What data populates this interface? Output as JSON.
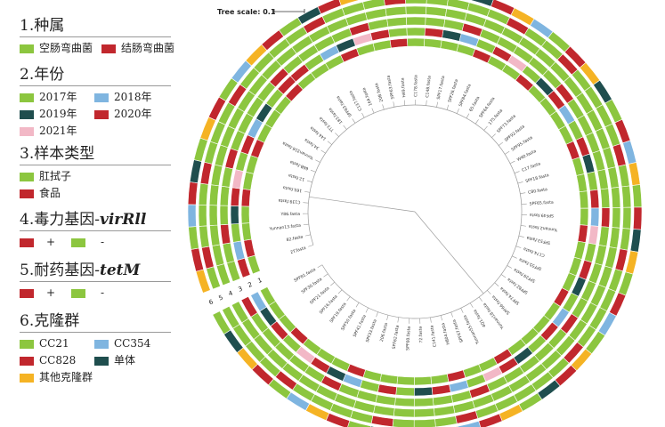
{
  "colors": {
    "green": "#8cc63f",
    "red": "#c1272d",
    "blue": "#7fb5e0",
    "dark": "#1f4e4e",
    "pink": "#f2b8c6",
    "orange": "#f5b324"
  },
  "legend": {
    "species": {
      "title": "1.种属",
      "items": [
        {
          "label": "空肠弯曲菌",
          "color": "#8cc63f"
        },
        {
          "label": "结肠弯曲菌",
          "color": "#c1272d"
        }
      ]
    },
    "year": {
      "title": "2.年份",
      "items": [
        {
          "label": "2017年",
          "color": "#8cc63f"
        },
        {
          "label": "2018年",
          "color": "#7fb5e0"
        },
        {
          "label": "2019年",
          "color": "#1f4e4e"
        },
        {
          "label": "2020年",
          "color": "#c1272d"
        },
        {
          "label": "2021年",
          "color": "#f2b8c6"
        }
      ]
    },
    "sample": {
      "title": "3.样本类型",
      "items": [
        {
          "label": "肛拭子",
          "color": "#8cc63f"
        },
        {
          "label": "食品",
          "color": "#c1272d"
        }
      ]
    },
    "virulence": {
      "title_prefix": "4.毒力基因-",
      "gene": "virRll",
      "plus": "+",
      "minus": "-"
    },
    "resistance": {
      "title_prefix": "5.耐药基因-",
      "gene": "tetM",
      "plus": "+",
      "minus": "-"
    },
    "clone": {
      "title": "6.克隆群",
      "items": [
        {
          "label": "CC21",
          "color": "#8cc63f"
        },
        {
          "label": "CC354",
          "color": "#7fb5e0"
        },
        {
          "label": "CC828",
          "color": "#c1272d"
        },
        {
          "label": "单体",
          "color": "#1f4e4e"
        },
        {
          "label": "其他克隆群",
          "color": "#f5b324"
        }
      ]
    }
  },
  "tree": {
    "scale_label": "Tree scale: 0.1",
    "ring_labels": [
      "6",
      "5",
      "4",
      "3",
      "2",
      "1"
    ],
    "leaf_labels": [
      "2T.fasta",
      "82.fasta",
      "Yunnan13.fasta",
      "Y86.fasta",
      "C139.fasta",
      "16S.fasta",
      "12.fasta",
      "66B.fasta",
      "Yunnan316.fasta",
      "34.fasta",
      "144.fasta",
      "TT3.fasta",
      "183.fasta",
      "SPF83.fasta",
      "C137.fasta",
      "164.fasta",
      "20B.fasta",
      "SPF63.fasta",
      "H49.fasta",
      "C178.fasta",
      "C148.fasta",
      "SPF17.fasta",
      "SPF26.fasta",
      "SPF84.fasta",
      "65.fasta",
      "SPF64.fasta",
      "175.fasta",
      "SPF73.fasta",
      "SPF92.fasta",
      "SPF95.fasta",
      "W40.fasta",
      "C17.fasta",
      "SPF18.fasta",
      "C80.fasta",
      "SPF65.fasta",
      "SPF49.fasta",
      "Yunnan2.fasta",
      "SPF53.fasta",
      "C174.fasta",
      "SPF55.fasta",
      "SPF29.fasta",
      "SPF82.fasta",
      "SPF74.fasta",
      "SPF66.fasta",
      "Yunnan18.fasta",
      "4Q1.fasta",
      "Yunnan55.fasta",
      "SPF67.fasta",
      "H804.fasta",
      "C141.fasta",
      "72.fasta",
      "SPF60.fasta",
      "SPF62.fasta",
      "206.fasta",
      "SPF33.fasta",
      "SPF41.fasta",
      "SPF50.fasta",
      "SPF19.fasta",
      "SPF16.fasta",
      "SPF21.fasta",
      "SPF30.fasta",
      "SPF81.fasta"
    ],
    "rings": [
      [
        "#8cc63f",
        "#c1272d",
        "#8cc63f",
        "#8cc63f",
        "#c1272d",
        "#8cc63f",
        "#8cc63f",
        "#c1272d",
        "#8cc63f",
        "#8cc63f",
        "#8cc63f",
        "#c1272d",
        "#8cc63f",
        "#8cc63f",
        "#8cc63f",
        "#c1272d",
        "#8cc63f",
        "#8cc63f",
        "#c1272d",
        "#8cc63f",
        "#8cc63f",
        "#8cc63f",
        "#8cc63f",
        "#c1272d",
        "#8cc63f",
        "#8cc63f",
        "#c1272d",
        "#8cc63f",
        "#8cc63f",
        "#8cc63f",
        "#8cc63f",
        "#c1272d",
        "#8cc63f",
        "#8cc63f",
        "#8cc63f",
        "#8cc63f",
        "#c1272d",
        "#8cc63f",
        "#8cc63f",
        "#8cc63f",
        "#c1272d",
        "#8cc63f",
        "#8cc63f",
        "#8cc63f",
        "#8cc63f",
        "#c1272d",
        "#8cc63f",
        "#8cc63f",
        "#c1272d",
        "#8cc63f",
        "#8cc63f",
        "#8cc63f",
        "#8cc63f",
        "#8cc63f",
        "#c1272d",
        "#8cc63f",
        "#8cc63f",
        "#8cc63f",
        "#c1272d",
        "#8cc63f",
        "#8cc63f",
        "#8cc63f"
      ],
      [
        "#c1272d",
        "#7fb5e0",
        "#8cc63f",
        "#1f4e4e",
        "#c1272d",
        "#f2b8c6",
        "#8cc63f",
        "#c1272d",
        "#7fb5e0",
        "#1f4e4e",
        "#8cc63f",
        "#c1272d",
        "#c1272d",
        "#8cc63f",
        "#7fb5e0",
        "#1f4e4e",
        "#f2b8c6",
        "#c1272d",
        "#8cc63f",
        "#8cc63f",
        "#c1272d",
        "#1f4e4e",
        "#7fb5e0",
        "#8cc63f",
        "#c1272d",
        "#f2b8c6",
        "#8cc63f",
        "#1f4e4e",
        "#c1272d",
        "#7fb5e0",
        "#8cc63f",
        "#c1272d",
        "#1f4e4e",
        "#8cc63f",
        "#c1272d",
        "#7fb5e0",
        "#f2b8c6",
        "#8cc63f",
        "#c1272d",
        "#1f4e4e",
        "#8cc63f",
        "#7fb5e0",
        "#c1272d",
        "#8cc63f",
        "#1f4e4e",
        "#c1272d",
        "#f2b8c6",
        "#8cc63f",
        "#7fb5e0",
        "#c1272d",
        "#1f4e4e",
        "#8cc63f",
        "#c1272d",
        "#8cc63f",
        "#7fb5e0",
        "#1f4e4e",
        "#c1272d",
        "#f2b8c6",
        "#8cc63f",
        "#c1272d",
        "#1f4e4e",
        "#7fb5e0"
      ],
      [
        "#8cc63f",
        "#8cc63f",
        "#c1272d",
        "#8cc63f",
        "#8cc63f",
        "#8cc63f",
        "#c1272d",
        "#8cc63f",
        "#8cc63f",
        "#8cc63f",
        "#8cc63f",
        "#c1272d",
        "#8cc63f",
        "#8cc63f",
        "#8cc63f",
        "#8cc63f",
        "#c1272d",
        "#8cc63f",
        "#8cc63f",
        "#8cc63f",
        "#8cc63f",
        "#8cc63f",
        "#c1272d",
        "#8cc63f",
        "#8cc63f",
        "#8cc63f",
        "#8cc63f",
        "#8cc63f",
        "#c1272d",
        "#8cc63f",
        "#8cc63f",
        "#8cc63f",
        "#8cc63f",
        "#8cc63f",
        "#8cc63f",
        "#c1272d",
        "#8cc63f",
        "#8cc63f",
        "#8cc63f",
        "#8cc63f",
        "#8cc63f",
        "#c1272d",
        "#8cc63f",
        "#8cc63f",
        "#8cc63f",
        "#8cc63f",
        "#8cc63f",
        "#c1272d",
        "#8cc63f",
        "#8cc63f",
        "#8cc63f",
        "#8cc63f",
        "#8cc63f",
        "#8cc63f",
        "#8cc63f",
        "#c1272d",
        "#8cc63f",
        "#8cc63f",
        "#8cc63f",
        "#8cc63f",
        "#8cc63f",
        "#c1272d"
      ],
      [
        "#8cc63f",
        "#8cc63f",
        "#8cc63f",
        "#8cc63f",
        "#8cc63f",
        "#8cc63f",
        "#8cc63f",
        "#8cc63f",
        "#8cc63f",
        "#8cc63f",
        "#8cc63f",
        "#8cc63f",
        "#8cc63f",
        "#8cc63f",
        "#8cc63f",
        "#8cc63f",
        "#8cc63f",
        "#8cc63f",
        "#8cc63f",
        "#8cc63f",
        "#8cc63f",
        "#8cc63f",
        "#8cc63f",
        "#8cc63f",
        "#8cc63f",
        "#8cc63f",
        "#8cc63f",
        "#8cc63f",
        "#8cc63f",
        "#8cc63f",
        "#8cc63f",
        "#8cc63f",
        "#8cc63f",
        "#8cc63f",
        "#8cc63f",
        "#8cc63f",
        "#8cc63f",
        "#8cc63f",
        "#8cc63f",
        "#8cc63f",
        "#8cc63f",
        "#8cc63f",
        "#8cc63f",
        "#8cc63f",
        "#8cc63f",
        "#8cc63f",
        "#8cc63f",
        "#8cc63f",
        "#8cc63f",
        "#8cc63f",
        "#8cc63f",
        "#8cc63f",
        "#8cc63f",
        "#8cc63f",
        "#8cc63f",
        "#8cc63f",
        "#8cc63f",
        "#8cc63f",
        "#8cc63f",
        "#8cc63f",
        "#8cc63f",
        "#8cc63f"
      ],
      [
        "#8cc63f",
        "#c1272d",
        "#8cc63f",
        "#8cc63f",
        "#8cc63f",
        "#c1272d",
        "#8cc63f",
        "#8cc63f",
        "#8cc63f",
        "#c1272d",
        "#8cc63f",
        "#8cc63f",
        "#8cc63f",
        "#8cc63f",
        "#c1272d",
        "#8cc63f",
        "#8cc63f",
        "#8cc63f",
        "#c1272d",
        "#8cc63f",
        "#8cc63f",
        "#8cc63f",
        "#8cc63f",
        "#8cc63f",
        "#c1272d",
        "#8cc63f",
        "#8cc63f",
        "#c1272d",
        "#8cc63f",
        "#8cc63f",
        "#8cc63f",
        "#8cc63f",
        "#c1272d",
        "#8cc63f",
        "#8cc63f",
        "#8cc63f",
        "#8cc63f",
        "#c1272d",
        "#8cc63f",
        "#8cc63f",
        "#8cc63f",
        "#8cc63f",
        "#c1272d",
        "#8cc63f",
        "#8cc63f",
        "#8cc63f",
        "#8cc63f",
        "#8cc63f",
        "#c1272d",
        "#8cc63f",
        "#8cc63f",
        "#8cc63f",
        "#c1272d",
        "#8cc63f",
        "#8cc63f",
        "#8cc63f",
        "#8cc63f",
        "#c1272d",
        "#8cc63f",
        "#8cc63f",
        "#8cc63f",
        "#8cc63f"
      ],
      [
        "#f5b324",
        "#c1272d",
        "#8cc63f",
        "#7fb5e0",
        "#c1272d",
        "#1f4e4e",
        "#8cc63f",
        "#f5b324",
        "#c1272d",
        "#8cc63f",
        "#7fb5e0",
        "#f5b324",
        "#c1272d",
        "#8cc63f",
        "#1f4e4e",
        "#c1272d",
        "#f5b324",
        "#8cc63f",
        "#7fb5e0",
        "#c1272d",
        "#f5b324",
        "#8cc63f",
        "#1f4e4e",
        "#c1272d",
        "#f5b324",
        "#7fb5e0",
        "#8cc63f",
        "#c1272d",
        "#f5b324",
        "#1f4e4e",
        "#8cc63f",
        "#c1272d",
        "#7fb5e0",
        "#f5b324",
        "#8cc63f",
        "#c1272d",
        "#1f4e4e",
        "#f5b324",
        "#8cc63f",
        "#c1272d",
        "#7fb5e0",
        "#8cc63f",
        "#f5b324",
        "#c1272d",
        "#1f4e4e",
        "#8cc63f",
        "#f5b324",
        "#c1272d",
        "#7fb5e0",
        "#8cc63f",
        "#c1272d",
        "#f5b324",
        "#1f4e4e",
        "#8cc63f",
        "#c1272d",
        "#f5b324",
        "#7fb5e0",
        "#8cc63f",
        "#c1272d",
        "#f5b324",
        "#1f4e4e",
        "#8cc63f"
      ]
    ]
  }
}
